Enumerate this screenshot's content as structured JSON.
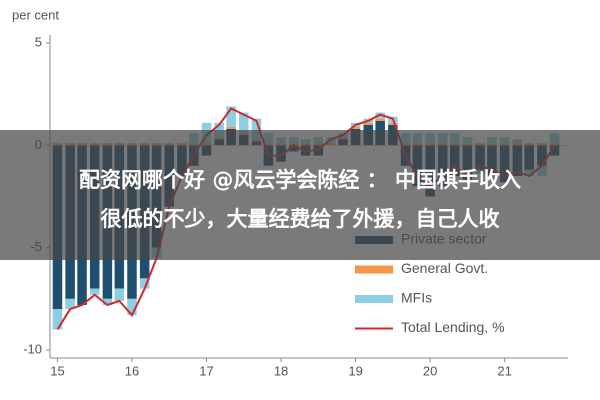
{
  "chart_data": {
    "type": "bar-line",
    "y_label": "per cent",
    "x": [
      15,
      15.17,
      15.33,
      15.5,
      15.67,
      15.83,
      16,
      16.17,
      16.33,
      16.5,
      16.67,
      16.83,
      17,
      17.17,
      17.33,
      17.5,
      17.67,
      17.83,
      18,
      18.17,
      18.33,
      18.5,
      18.67,
      18.83,
      19,
      19.17,
      19.33,
      19.5,
      19.67,
      19.83,
      20,
      20.17,
      20.33,
      20.5,
      20.67,
      20.83,
      21,
      21.17,
      21.33,
      21.5,
      21.67
    ],
    "xlim": [
      14.9,
      21.85
    ],
    "xticks": [
      15,
      16,
      17,
      18,
      19,
      20,
      21
    ],
    "ylim": [
      -10,
      5
    ],
    "yticks": [
      -10,
      -5,
      0,
      5
    ],
    "legend": "lower right",
    "series": [
      {
        "name": "Private sector",
        "type": "bar",
        "color": "#1f4e6e",
        "values": [
          -8,
          -7.5,
          -7.8,
          -7,
          -7.5,
          -7,
          -7.5,
          -6.5,
          -5,
          -3,
          -1.5,
          -1,
          -0.5,
          0.3,
          0.8,
          0.5,
          0.2,
          -1,
          -0.8,
          -0.3,
          -0.5,
          -0.5,
          0,
          0.3,
          0.8,
          1,
          1.2,
          1,
          -1,
          -2,
          -2.5,
          -2,
          -1.5,
          -1.8,
          -1.2,
          -1.5,
          -1.8,
          -1.5,
          -1.2,
          -1,
          -0.5
        ]
      },
      {
        "name": "General Govt.",
        "type": "bar",
        "color": "#f79646",
        "values": [
          0.1,
          0.1,
          0.1,
          0.1,
          0.1,
          0.1,
          0.1,
          0.1,
          0.1,
          0.1,
          0.1,
          0.1,
          0.1,
          0.1,
          0.1,
          0.1,
          0.1,
          0.1,
          0.1,
          0.1,
          0.1,
          0.1,
          0.1,
          0.1,
          0.1,
          0.1,
          0.1,
          0.1,
          0.1,
          0.1,
          0.1,
          0.1,
          0.1,
          0.1,
          0.1,
          0.1,
          0.1,
          0.1,
          0.1,
          0.1,
          0.1
        ]
      },
      {
        "name": "MFIs",
        "type": "bar",
        "color": "#8ccfe3",
        "values": [
          -1,
          -0.5,
          0,
          -0.3,
          -0.3,
          -0.6,
          -0.8,
          -0.5,
          -0.5,
          0,
          0,
          0.5,
          1,
          0.7,
          1,
          1,
          1,
          0.5,
          0.3,
          0.3,
          0.2,
          0.3,
          0.3,
          0.2,
          0.2,
          0.2,
          0.3,
          0.3,
          0.5,
          0.5,
          0.5,
          0.5,
          0.5,
          0.3,
          -0.2,
          0.3,
          0.3,
          0.2,
          -0.3,
          -0.5,
          0.5
        ]
      },
      {
        "name": "Total Lending, %",
        "type": "line",
        "color": "#d62728",
        "values": [
          -9,
          -8,
          -7.8,
          -7.3,
          -7.8,
          -7.6,
          -8.3,
          -7,
          -5.5,
          -3,
          -1.5,
          -0.5,
          0.5,
          1,
          1.8,
          1.5,
          1.2,
          -0.5,
          -0.5,
          0,
          -0.3,
          -0.2,
          0.3,
          0.5,
          1,
          1.2,
          1.5,
          1.3,
          -0.5,
          -1.5,
          -2,
          -1.5,
          -1,
          -1.5,
          -1,
          -1.2,
          -1.5,
          -1.3,
          -1.5,
          -1,
          0
        ]
      }
    ]
  },
  "overlay": {
    "lines": [
      "配资网哪个好 @风云学会陈经 ： 中国棋手收入",
      "很低的不少，大量经费给了外援，自己人收"
    ]
  }
}
